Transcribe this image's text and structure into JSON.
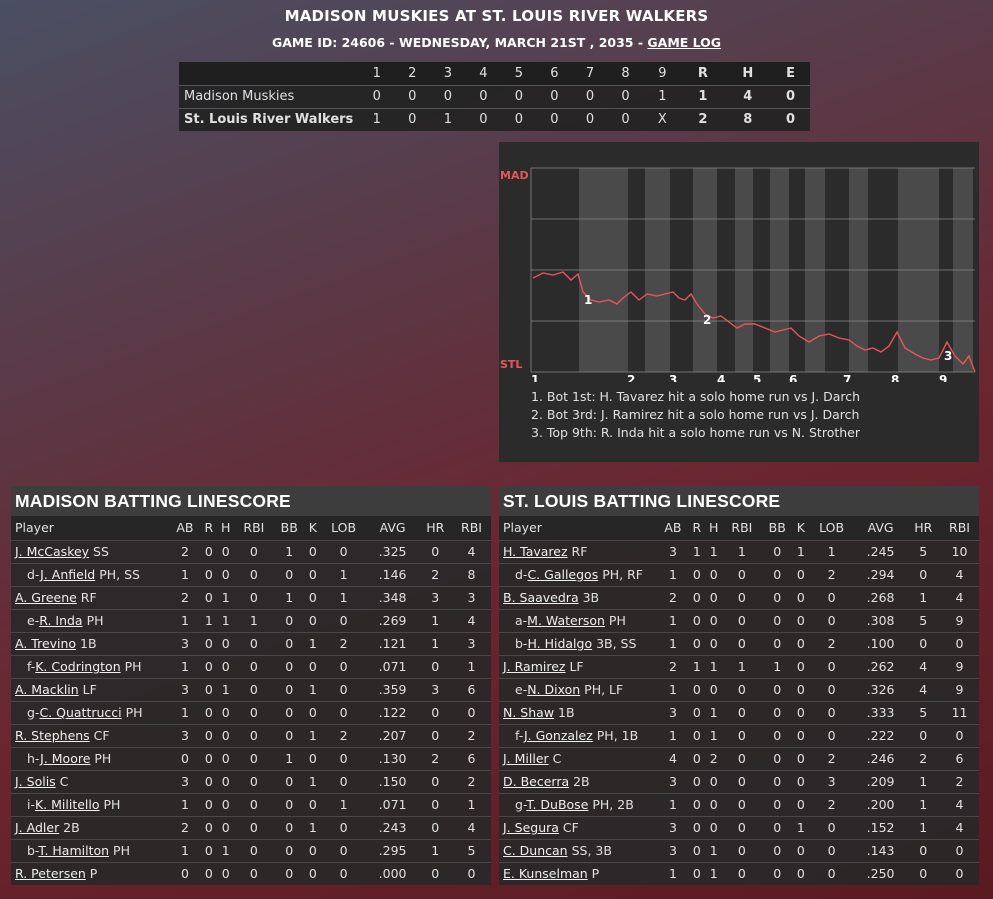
{
  "header": {
    "title": "MADISON MUSKIES AT ST. LOUIS RIVER WALKERS",
    "info": "GAME ID: 24606 - WEDNESDAY, MARCH 21ST , 2035 - ",
    "game_log": "GAME LOG"
  },
  "linescore": {
    "innings": [
      "1",
      "2",
      "3",
      "4",
      "5",
      "6",
      "7",
      "8",
      "9"
    ],
    "totals_headers": [
      "R",
      "H",
      "E"
    ],
    "teams": [
      {
        "name": "Madison Muskies",
        "innings": [
          "0",
          "0",
          "0",
          "0",
          "0",
          "0",
          "0",
          "0",
          "1"
        ],
        "totals": [
          "1",
          "4",
          "0"
        ]
      },
      {
        "name": "St. Louis River Walkers",
        "innings": [
          "1",
          "0",
          "1",
          "0",
          "0",
          "0",
          "0",
          "0",
          "X"
        ],
        "totals": [
          "2",
          "8",
          "0"
        ]
      }
    ]
  },
  "win_probability": {
    "top_label": "MAD",
    "bottom_label": "STL",
    "inning_labels": [
      "1",
      "2",
      "3",
      "4",
      "5",
      "6",
      "7",
      "8",
      "9"
    ],
    "highlights": [
      "1",
      "2",
      "3"
    ],
    "notes": [
      "1. Bot 1st: H. Tavarez hit a solo home run vs J. Darch",
      "2. Bot 3rd: J. Ramirez hit a solo home run vs J. Darch",
      "3. Top 9th: R. Inda hit a solo home run vs N. Strother"
    ],
    "colors": {
      "line": "#e8555a",
      "panel": "#2b2b2b",
      "band": "#4a4a4a"
    }
  },
  "batting_headers": [
    "Player",
    "AB",
    "R",
    "H",
    "RBI",
    "BB",
    "K",
    "LOB",
    "AVG",
    "HR",
    "RBI"
  ],
  "madison": {
    "title": "MADISON BATTING LINESCORE",
    "rows": [
      {
        "prefix": "",
        "name": "J. McCaskey",
        "pos": " SS",
        "stats": [
          "2",
          "0",
          "0",
          "0",
          "1",
          "0",
          "0",
          ".325",
          "0",
          "4"
        ]
      },
      {
        "prefix": "d-",
        "name": "J. Anfield",
        "pos": " PH, SS",
        "stats": [
          "1",
          "0",
          "0",
          "0",
          "0",
          "0",
          "1",
          ".146",
          "2",
          "8"
        ]
      },
      {
        "prefix": "",
        "name": "A. Greene",
        "pos": " RF",
        "stats": [
          "2",
          "0",
          "1",
          "0",
          "1",
          "0",
          "1",
          ".348",
          "3",
          "3"
        ]
      },
      {
        "prefix": "e-",
        "name": "R. Inda",
        "pos": " PH",
        "stats": [
          "1",
          "1",
          "1",
          "1",
          "0",
          "0",
          "0",
          ".269",
          "1",
          "4"
        ]
      },
      {
        "prefix": "",
        "name": "A. Trevino",
        "pos": " 1B",
        "stats": [
          "3",
          "0",
          "0",
          "0",
          "0",
          "1",
          "2",
          ".121",
          "1",
          "3"
        ]
      },
      {
        "prefix": "f-",
        "name": "K. Codrington",
        "pos": " PH",
        "stats": [
          "1",
          "0",
          "0",
          "0",
          "0",
          "0",
          "0",
          ".071",
          "0",
          "1"
        ]
      },
      {
        "prefix": "",
        "name": "A. Macklin",
        "pos": " LF",
        "stats": [
          "3",
          "0",
          "1",
          "0",
          "0",
          "1",
          "0",
          ".359",
          "3",
          "6"
        ]
      },
      {
        "prefix": "g-",
        "name": "C. Quattrucci",
        "pos": " PH",
        "stats": [
          "1",
          "0",
          "0",
          "0",
          "0",
          "0",
          "0",
          ".122",
          "0",
          "0"
        ]
      },
      {
        "prefix": "",
        "name": "R. Stephens",
        "pos": " CF",
        "stats": [
          "3",
          "0",
          "0",
          "0",
          "0",
          "1",
          "2",
          ".207",
          "0",
          "2"
        ]
      },
      {
        "prefix": "h-",
        "name": "J. Moore",
        "pos": " PH",
        "stats": [
          "0",
          "0",
          "0",
          "0",
          "1",
          "0",
          "0",
          ".130",
          "2",
          "6"
        ]
      },
      {
        "prefix": "",
        "name": "J. Solis",
        "pos": " C",
        "stats": [
          "3",
          "0",
          "0",
          "0",
          "0",
          "1",
          "0",
          ".150",
          "0",
          "2"
        ]
      },
      {
        "prefix": "i-",
        "name": "K. Militello",
        "pos": " PH",
        "stats": [
          "1",
          "0",
          "0",
          "0",
          "0",
          "0",
          "1",
          ".071",
          "0",
          "1"
        ]
      },
      {
        "prefix": "",
        "name": "J. Adler",
        "pos": " 2B",
        "stats": [
          "2",
          "0",
          "0",
          "0",
          "0",
          "1",
          "0",
          ".243",
          "0",
          "4"
        ]
      },
      {
        "prefix": "b-",
        "name": "T. Hamilton",
        "pos": " PH",
        "stats": [
          "1",
          "0",
          "1",
          "0",
          "0",
          "0",
          "0",
          ".295",
          "1",
          "5"
        ]
      },
      {
        "prefix": "",
        "name": "R. Petersen",
        "pos": " P",
        "stats": [
          "0",
          "0",
          "0",
          "0",
          "0",
          "0",
          "0",
          ".000",
          "0",
          "0"
        ]
      }
    ]
  },
  "stlouis": {
    "title": "ST. LOUIS BATTING LINESCORE",
    "rows": [
      {
        "prefix": "",
        "name": "H. Tavarez",
        "pos": " RF",
        "stats": [
          "3",
          "1",
          "1",
          "1",
          "0",
          "1",
          "1",
          ".245",
          "5",
          "10"
        ]
      },
      {
        "prefix": "d-",
        "name": "C. Gallegos",
        "pos": " PH, RF",
        "stats": [
          "1",
          "0",
          "0",
          "0",
          "0",
          "0",
          "2",
          ".294",
          "0",
          "4"
        ]
      },
      {
        "prefix": "",
        "name": "B. Saavedra",
        "pos": " 3B",
        "stats": [
          "2",
          "0",
          "0",
          "0",
          "0",
          "0",
          "0",
          ".268",
          "1",
          "4"
        ]
      },
      {
        "prefix": "a-",
        "name": "M. Waterson",
        "pos": " PH",
        "stats": [
          "1",
          "0",
          "0",
          "0",
          "0",
          "0",
          "0",
          ".308",
          "5",
          "9"
        ]
      },
      {
        "prefix": "b-",
        "name": "H. Hidalgo",
        "pos": " 3B, SS",
        "stats": [
          "1",
          "0",
          "0",
          "0",
          "0",
          "0",
          "2",
          ".100",
          "0",
          "0"
        ]
      },
      {
        "prefix": "",
        "name": "J. Ramirez",
        "pos": " LF",
        "stats": [
          "2",
          "1",
          "1",
          "1",
          "1",
          "0",
          "0",
          ".262",
          "4",
          "9"
        ]
      },
      {
        "prefix": "e-",
        "name": "N. Dixon",
        "pos": " PH, LF",
        "stats": [
          "1",
          "0",
          "0",
          "0",
          "0",
          "0",
          "0",
          ".326",
          "4",
          "9"
        ]
      },
      {
        "prefix": "",
        "name": "N. Shaw",
        "pos": " 1B",
        "stats": [
          "3",
          "0",
          "1",
          "0",
          "0",
          "0",
          "0",
          ".333",
          "5",
          "11"
        ]
      },
      {
        "prefix": "f-",
        "name": "J. Gonzalez",
        "pos": " PH, 1B",
        "stats": [
          "1",
          "0",
          "1",
          "0",
          "0",
          "0",
          "0",
          ".222",
          "0",
          "0"
        ]
      },
      {
        "prefix": "",
        "name": "J. Miller",
        "pos": " C",
        "stats": [
          "4",
          "0",
          "2",
          "0",
          "0",
          "0",
          "2",
          ".246",
          "2",
          "6"
        ]
      },
      {
        "prefix": "",
        "name": "D. Becerra",
        "pos": " 2B",
        "stats": [
          "3",
          "0",
          "0",
          "0",
          "0",
          "0",
          "3",
          ".209",
          "1",
          "2"
        ]
      },
      {
        "prefix": "g-",
        "name": "T. DuBose",
        "pos": " PH, 2B",
        "stats": [
          "1",
          "0",
          "0",
          "0",
          "0",
          "0",
          "2",
          ".200",
          "1",
          "4"
        ]
      },
      {
        "prefix": "",
        "name": "J. Segura",
        "pos": " CF",
        "stats": [
          "3",
          "0",
          "0",
          "0",
          "0",
          "1",
          "0",
          ".152",
          "1",
          "4"
        ]
      },
      {
        "prefix": "",
        "name": "C. Duncan",
        "pos": " SS, 3B",
        "stats": [
          "3",
          "0",
          "1",
          "0",
          "0",
          "0",
          "0",
          ".143",
          "0",
          "0"
        ]
      },
      {
        "prefix": "",
        "name": "E. Kunselman",
        "pos": " P",
        "stats": [
          "1",
          "0",
          "1",
          "0",
          "0",
          "0",
          "0",
          ".250",
          "0",
          "0"
        ]
      }
    ]
  }
}
